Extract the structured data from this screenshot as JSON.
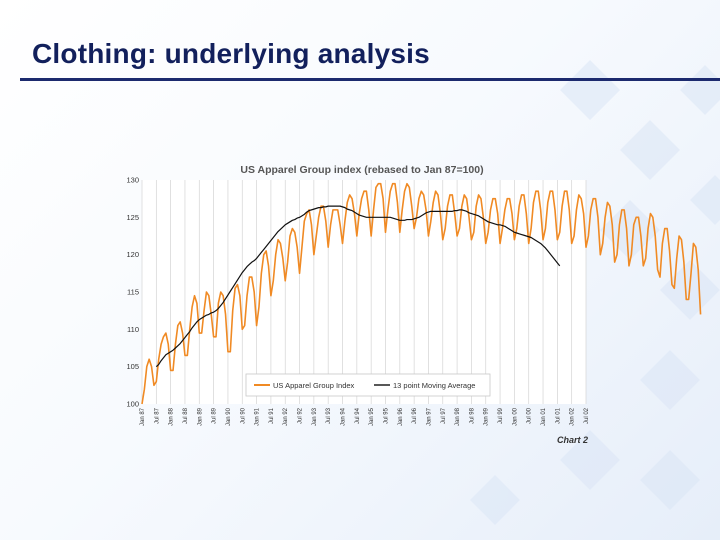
{
  "slide": {
    "title": "Clothing: underlying analysis",
    "title_color": "#12205c",
    "rule_color": "#1c2a6e"
  },
  "chart_data": {
    "type": "line",
    "title": "US Apparel Group index (rebased to Jan 87=100)",
    "caption": "Chart 2",
    "xlabel": "",
    "ylabel": "",
    "ylim": [
      100,
      130
    ],
    "yticks": [
      100,
      105,
      110,
      115,
      120,
      125,
      130
    ],
    "xlim": [
      "Jan 87",
      "Jul 02"
    ],
    "xticks": [
      "Jan 87",
      "Jul 87",
      "Jan 88",
      "Jul 88",
      "Jan 89",
      "Jul 89",
      "Jan 90",
      "Jul 90",
      "Jan 91",
      "Jul 91",
      "Jan 92",
      "Jul 92",
      "Jan 93",
      "Jul 93",
      "Jan 94",
      "Jul 94",
      "Jan 95",
      "Jul 95",
      "Jan 96",
      "Jul 96",
      "Jan 97",
      "Jul 97",
      "Jan 98",
      "Jul 98",
      "Jan 99",
      "Jul 99",
      "Jan 00",
      "Jul 00",
      "Jan 01",
      "Jul 01",
      "Jan 02",
      "Jul 02"
    ],
    "grid": "vertical",
    "legend_position": "bottom-center",
    "series": [
      {
        "name": "US Apparel Group Index",
        "color": "#f08a24",
        "values": [
          100.0,
          102.0,
          105.0,
          106.0,
          105.0,
          102.5,
          103.0,
          106.0,
          108.0,
          109.0,
          109.5,
          108.0,
          104.5,
          104.5,
          108.0,
          110.5,
          111.0,
          109.5,
          106.5,
          106.5,
          110.0,
          113.0,
          114.5,
          113.5,
          109.5,
          109.5,
          112.5,
          115.0,
          114.5,
          112.0,
          109.0,
          109.0,
          113.5,
          115.0,
          114.5,
          112.0,
          107.0,
          107.0,
          112.5,
          115.5,
          116.0,
          114.5,
          110.0,
          110.5,
          114.5,
          117.0,
          117.0,
          115.0,
          110.5,
          113.0,
          117.5,
          120.0,
          120.5,
          118.5,
          114.5,
          116.5,
          120.0,
          122.0,
          121.5,
          119.5,
          116.5,
          119.0,
          122.5,
          123.5,
          123.0,
          121.0,
          117.5,
          121.0,
          124.5,
          125.5,
          126.0,
          124.0,
          120.0,
          122.5,
          125.0,
          126.5,
          126.5,
          124.5,
          121.0,
          124.0,
          126.0,
          126.0,
          126.0,
          124.0,
          121.5,
          124.5,
          127.0,
          128.0,
          127.5,
          125.5,
          122.5,
          125.5,
          127.5,
          128.5,
          128.5,
          126.0,
          122.5,
          126.0,
          129.0,
          129.5,
          129.5,
          127.5,
          123.0,
          126.0,
          128.5,
          129.5,
          129.5,
          127.0,
          123.0,
          126.0,
          128.5,
          129.5,
          129.0,
          126.5,
          123.5,
          125.0,
          127.5,
          128.5,
          128.0,
          126.0,
          122.5,
          124.5,
          127.0,
          128.5,
          128.0,
          125.5,
          122.0,
          123.5,
          126.5,
          128.0,
          128.0,
          125.5,
          122.5,
          123.5,
          126.5,
          128.0,
          127.5,
          125.0,
          122.0,
          123.0,
          126.5,
          128.0,
          127.5,
          125.0,
          121.5,
          123.0,
          126.0,
          127.5,
          127.5,
          125.5,
          121.5,
          123.5,
          126.0,
          127.5,
          127.5,
          125.5,
          122.0,
          123.5,
          126.5,
          128.0,
          128.0,
          125.5,
          121.5,
          123.5,
          127.0,
          128.5,
          128.5,
          126.0,
          122.0,
          123.5,
          127.0,
          128.5,
          128.5,
          126.0,
          122.0,
          123.0,
          126.5,
          128.5,
          128.5,
          126.0,
          121.5,
          122.5,
          126.0,
          128.0,
          127.5,
          125.5,
          121.0,
          122.5,
          126.0,
          127.5,
          127.5,
          125.0,
          120.0,
          121.5,
          125.0,
          127.0,
          126.5,
          124.0,
          119.0,
          120.0,
          124.0,
          126.0,
          126.0,
          123.5,
          118.5,
          120.0,
          124.0,
          125.0,
          125.0,
          122.5,
          118.5,
          119.5,
          123.5,
          125.5,
          125.0,
          122.5,
          118.0,
          117.0,
          121.5,
          123.5,
          123.5,
          120.5,
          116.0,
          115.5,
          119.5,
          122.5,
          122.0,
          119.0,
          114.0,
          114.0,
          117.5,
          121.5,
          121.0,
          118.0,
          112.0
        ]
      },
      {
        "name": "13 point Moving Average",
        "color": "#111111",
        "start": "Jul 87",
        "values": [
          105.0,
          105.3,
          105.8,
          106.2,
          106.6,
          106.8,
          107.0,
          107.2,
          107.5,
          107.8,
          108.1,
          108.5,
          108.9,
          109.3,
          109.7,
          110.2,
          110.6,
          111.0,
          111.3,
          111.5,
          111.7,
          111.9,
          112.0,
          112.2,
          112.3,
          112.5,
          112.8,
          113.2,
          113.6,
          114.1,
          114.6,
          115.1,
          115.6,
          116.1,
          116.6,
          117.1,
          117.6,
          118.0,
          118.4,
          118.7,
          119.0,
          119.2,
          119.5,
          119.9,
          120.3,
          120.7,
          121.1,
          121.5,
          121.9,
          122.3,
          122.7,
          123.1,
          123.4,
          123.7,
          124.0,
          124.2,
          124.4,
          124.6,
          124.7,
          124.9,
          125.0,
          125.2,
          125.4,
          125.7,
          125.9,
          126.0,
          126.1,
          126.2,
          126.3,
          126.3,
          126.4,
          126.4,
          126.5,
          126.5,
          126.5,
          126.5,
          126.5,
          126.5,
          126.4,
          126.3,
          126.1,
          126.0,
          125.9,
          125.7,
          125.5,
          125.3,
          125.2,
          125.1,
          125.0,
          125.0,
          125.0,
          125.0,
          125.0,
          125.0,
          125.0,
          125.0,
          125.0,
          125.0,
          125.0,
          124.9,
          124.8,
          124.7,
          124.6,
          124.6,
          124.6,
          124.7,
          124.7,
          124.7,
          124.8,
          124.9,
          125.0,
          125.2,
          125.4,
          125.6,
          125.7,
          125.8,
          125.8,
          125.8,
          125.8,
          125.8,
          125.8,
          125.8,
          125.8,
          125.8,
          125.8,
          125.9,
          125.9,
          126.0,
          126.0,
          125.9,
          125.8,
          125.6,
          125.5,
          125.4,
          125.3,
          125.2,
          125.0,
          124.8,
          124.6,
          124.4,
          124.3,
          124.2,
          124.1,
          124.0,
          124.0,
          123.9,
          123.8,
          123.6,
          123.4,
          123.2,
          123.0,
          122.9,
          122.8,
          122.7,
          122.6,
          122.5,
          122.4,
          122.3,
          122.1,
          121.9,
          121.7,
          121.5,
          121.2,
          120.9,
          120.5,
          120.1,
          119.7,
          119.3,
          118.9,
          118.5
        ]
      }
    ]
  }
}
